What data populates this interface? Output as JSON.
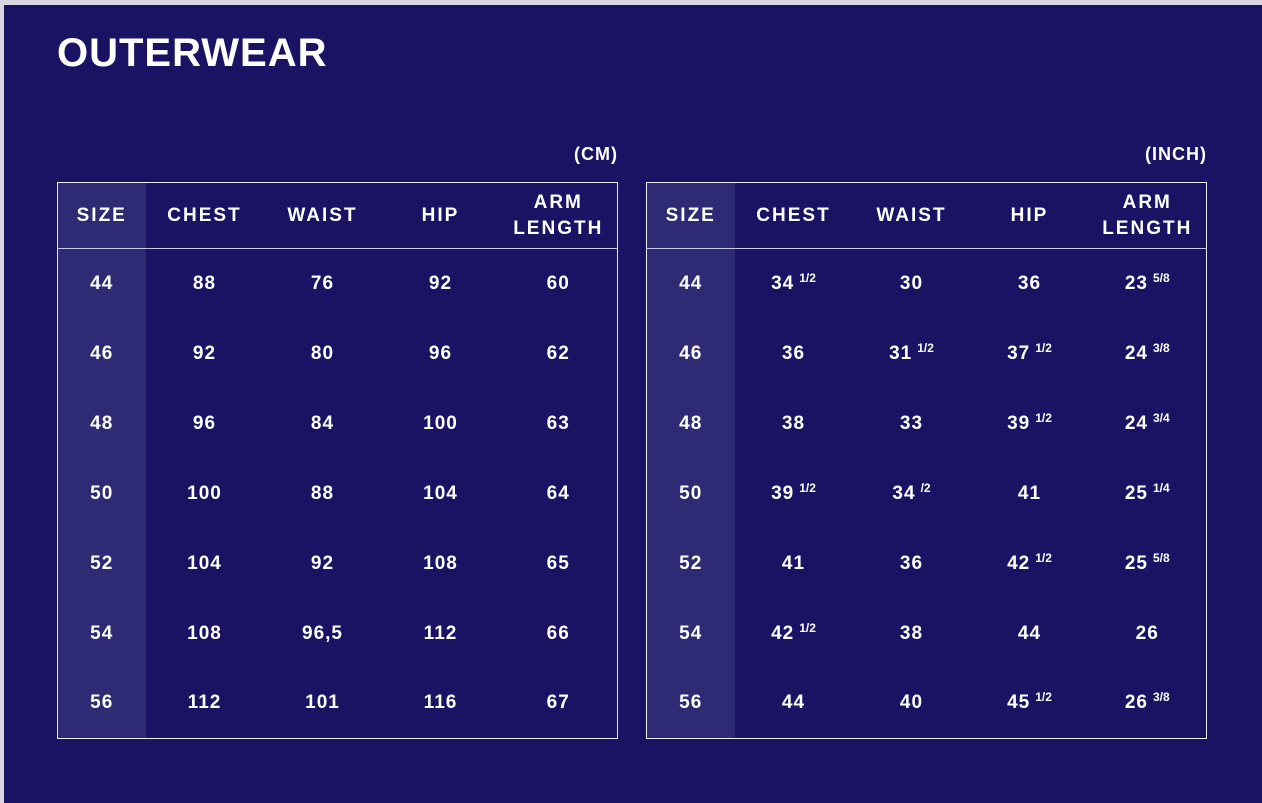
{
  "page": {
    "title": "OUTERWEAR"
  },
  "colors": {
    "background": "#1a1364",
    "size_column_highlight": "#2e2a73",
    "table_border": "#edecf7",
    "header_line": "#c9c7e2",
    "screen_edge": "#d9d6e1",
    "text": "#ffffff"
  },
  "tables": [
    {
      "id": "cm",
      "unit_label": "(CM)",
      "columns": [
        "SIZE",
        "CHEST",
        "WAIST",
        "HIP",
        "ARM LENGTH"
      ],
      "rows": [
        [
          "44",
          "88",
          "76",
          "92",
          "60"
        ],
        [
          "46",
          "92",
          "80",
          "96",
          "62"
        ],
        [
          "48",
          "96",
          "84",
          "100",
          "63"
        ],
        [
          "50",
          "100",
          "88",
          "104",
          "64"
        ],
        [
          "52",
          "104",
          "92",
          "108",
          "65"
        ],
        [
          "54",
          "108",
          "96,5",
          "112",
          "66"
        ],
        [
          "56",
          "112",
          "101",
          "116",
          "67"
        ]
      ]
    },
    {
      "id": "inch",
      "unit_label": "(INCH)",
      "columns": [
        "SIZE",
        "CHEST",
        "WAIST",
        "HIP",
        "ARM LENGTH"
      ],
      "rows": [
        [
          "44",
          "34 1/2",
          "30",
          "36",
          "23 5/8"
        ],
        [
          "46",
          "36",
          "31 1/2",
          "37 1/2",
          "24 3/8"
        ],
        [
          "48",
          "38",
          "33",
          "39 1/2",
          "24 3/4"
        ],
        [
          "50",
          "39 1/2",
          "34 /2",
          "41",
          "25 1/4"
        ],
        [
          "52",
          "41",
          "36",
          "42 1/2",
          "25 5/8"
        ],
        [
          "54",
          "42 1/2",
          "38",
          "44",
          "26"
        ],
        [
          "56",
          "44",
          "40",
          "45 1/2",
          "26 3/8"
        ]
      ]
    }
  ]
}
